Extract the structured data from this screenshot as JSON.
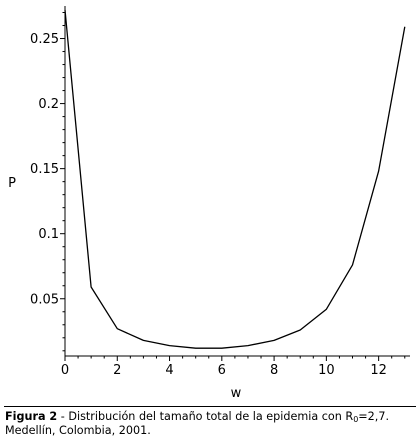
{
  "chart_data": {
    "type": "line",
    "xlabel": "w",
    "ylabel": "P",
    "xlim": [
      0,
      13.2
    ],
    "ylim": [
      0.006,
      0.275
    ],
    "x_ticks": [
      0,
      2,
      4,
      6,
      8,
      10,
      12
    ],
    "y_ticks": [
      0.05,
      0.1,
      0.15,
      0.2,
      0.25
    ],
    "grid": false,
    "line_color": "#000000",
    "series": [
      {
        "x": [
          0,
          1,
          2,
          3,
          4,
          5,
          6,
          7,
          8,
          9,
          10,
          11,
          12,
          13
        ],
        "values": [
          0.272,
          0.059,
          0.027,
          0.018,
          0.014,
          0.012,
          0.012,
          0.014,
          0.018,
          0.026,
          0.042,
          0.076,
          0.148,
          0.259
        ]
      }
    ]
  },
  "caption": {
    "label": "Figura 2",
    "text_before": " - Distribución del tamaño total de la epidemia con R",
    "subscript": "0",
    "text_after": "=2,7. Medellín, Colombia, 2001."
  }
}
